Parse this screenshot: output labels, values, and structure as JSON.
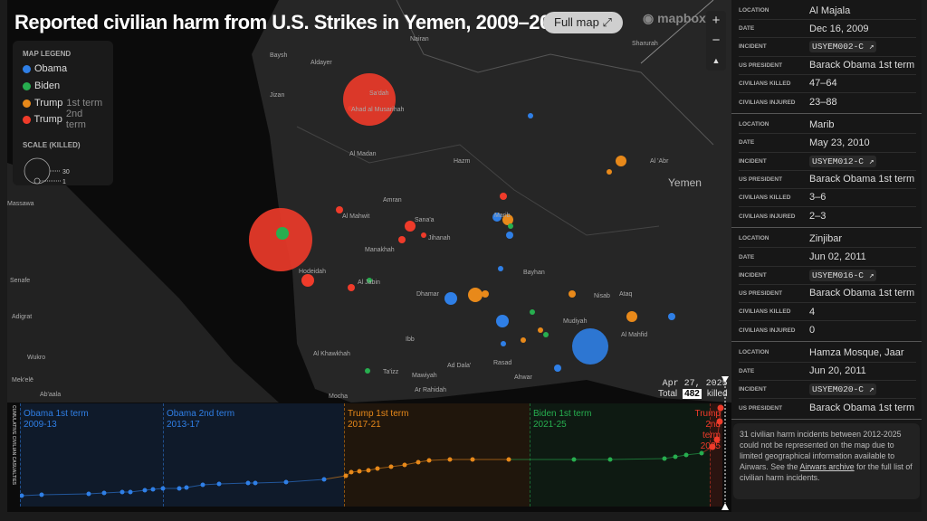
{
  "header": {
    "title": "Reported civilian harm from U.S. Strikes in Yemen, 2009–2025",
    "full_map": "Full map ⤢",
    "mapbox": "mapbox"
  },
  "zoom_controls": {
    "in": "+",
    "out": "−",
    "compass": "▲"
  },
  "colors": {
    "obama": "#2f7fe6",
    "biden": "#27ae4f",
    "trump1": "#e8891a",
    "trump2": "#ef3b2a"
  },
  "legend": {
    "title": "MAP LEGEND",
    "items": [
      {
        "label": "Obama",
        "sub": "",
        "color": "obama"
      },
      {
        "label": "Biden",
        "sub": "",
        "color": "biden"
      },
      {
        "label": "Trump",
        "sub": "1st term",
        "color": "trump1"
      },
      {
        "label": "Trump",
        "sub": "2nd term",
        "color": "trump2"
      }
    ],
    "scale_title": "SCALE (KILLED)",
    "scale_max": "30",
    "scale_min": "1"
  },
  "places": [
    "Nairan",
    "Sharurah",
    "Baysh",
    "Aldayer",
    "Jizan",
    "Sa'dah",
    "Ahad al Musarihah",
    "Al Madan",
    "Hazm",
    "Al 'Abr",
    "Yemen",
    "Massawa",
    "Amran",
    "Al Mahwit",
    "Sana'a",
    "Marib",
    "Jihanah",
    "Manakhah",
    "Hodeidah",
    "Al Jabin",
    "Bayhan",
    "Senafe",
    "Dhamar",
    "Nisab",
    "Ataq",
    "Adigrat",
    "Mudiyah",
    "Al Mahfid",
    "Ibb",
    "Al Khawkhah",
    "Ad Dala'",
    "Rasad",
    "Wukro",
    "Ta'izz",
    "Mawiyah",
    "Ar Rahidah",
    "Mek'elē",
    "Ab'aala",
    "Mocha",
    "Ahwar"
  ],
  "timeline": {
    "y_label": "CUMULATIVE CIVILIAN CASUALTIES",
    "terms": [
      {
        "name": "Obama 1st term",
        "years": "2009-13",
        "color": "obama"
      },
      {
        "name": "Obama 2nd term",
        "years": "2013-17",
        "color": "obama"
      },
      {
        "name": "Trump 1st term",
        "years": "2017-21",
        "color": "trump1"
      },
      {
        "name": "Biden 1st term",
        "years": "2021-25",
        "color": "biden"
      },
      {
        "name": "Trump 2nd term",
        "years": "2025",
        "color": "trump2"
      }
    ],
    "current_date": "Apr 27, 2025",
    "total_prefix": "Total",
    "total_killed": "482",
    "total_suffix": "killed"
  },
  "incidents": [
    {
      "location": "Al Majala",
      "date": "Dec 16, 2009",
      "incident": "USYEM002-C ↗",
      "president": "Barack Obama 1st term",
      "killed": "47–64",
      "injured": "23–88"
    },
    {
      "location": "Marib",
      "date": "May 23, 2010",
      "incident": "USYEM012-C ↗",
      "president": "Barack Obama 1st term",
      "killed": "3–6",
      "injured": "2–3"
    },
    {
      "location": "Zinjibar",
      "date": "Jun 02, 2011",
      "incident": "USYEM016-C ↗",
      "president": "Barack Obama 1st term",
      "killed": "4",
      "injured": "0"
    },
    {
      "location": "Hamza Mosque, Jaar",
      "date": "Jun 20, 2011",
      "incident": "USYEM020-C ↗",
      "president": "Barack Obama 1st term"
    }
  ],
  "labels": {
    "location": "LOCATION",
    "date": "DATE",
    "incident": "INCIDENT",
    "president": "US PRESIDENT",
    "killed": "CIVILIANS KILLED",
    "injured": "CIVILIANS INJURED"
  },
  "note": {
    "before": "31 civilian harm incidents between 2012-2025 could not be represented on the map due to limited geographical information available to Airwars. See the ",
    "link": "Airwars archive",
    "after": " for the full list of civilian harm incidents."
  }
}
